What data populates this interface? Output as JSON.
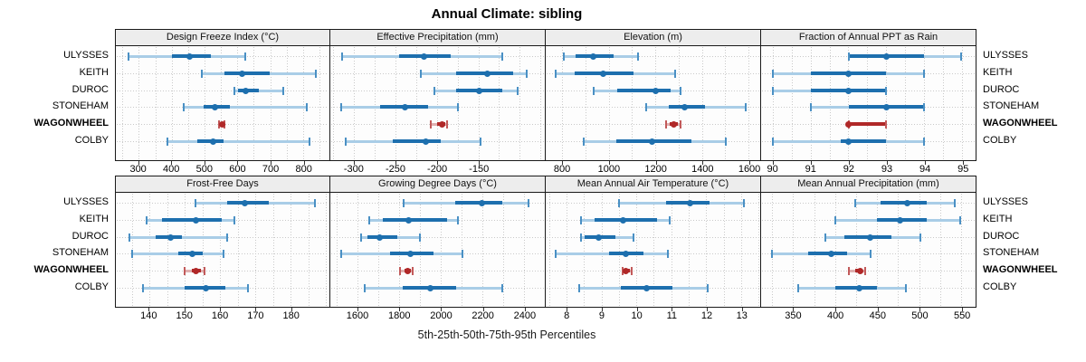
{
  "title": "Annual Climate: sibling",
  "caption": "5th-25th-50th-75th-95th Percentiles",
  "sites": [
    "ULYSSES",
    "KEITH",
    "DUROC",
    "STONEHAM",
    "WAGONWHEEL",
    "COLBY"
  ],
  "highlight_site": "WAGONWHEEL",
  "colors": {
    "blue_main": "#1d6fae",
    "blue_cap": "#4a90c4",
    "blue_band": "#a9cde7",
    "red_main": "#b02828",
    "red_cap": "#c25a5a",
    "red_band": "#dfb0b0",
    "header_bg": "#ededed",
    "panel_border": "#1a1a1a",
    "gridline": "#c9c9c9"
  },
  "chart_data": [
    {
      "type": "dot-whisker",
      "title": "Design Freeze Index (°C)",
      "row": 1,
      "xlim": [
        230,
        880
      ],
      "ticks": [
        300,
        400,
        500,
        600,
        700,
        800
      ],
      "minor_step": 50,
      "percentiles": [
        "5th",
        "25th",
        "50th",
        "75th",
        "95th"
      ],
      "series": [
        {
          "name": "ULYSSES",
          "values": [
            265,
            400,
            455,
            520,
            625
          ]
        },
        {
          "name": "KEITH",
          "values": [
            490,
            560,
            615,
            700,
            840
          ]
        },
        {
          "name": "DUROC",
          "values": [
            590,
            602,
            627,
            665,
            742
          ]
        },
        {
          "name": "STONEHAM",
          "values": [
            435,
            497,
            531,
            578,
            812
          ]
        },
        {
          "name": "WAGONWHEEL",
          "values": [
            545,
            550,
            553,
            557,
            561
          ]
        },
        {
          "name": "COLBY",
          "values": [
            385,
            477,
            527,
            558,
            822
          ]
        }
      ]
    },
    {
      "type": "dot-whisker",
      "title": "Effective Precipitation (mm)",
      "row": 1,
      "xlim": [
        -328,
        -70
      ],
      "ticks": [
        -300,
        -250,
        -200,
        -150
      ],
      "minor_step": 25,
      "percentiles": [
        "5th",
        "25th",
        "50th",
        "75th",
        "95th"
      ],
      "series": [
        {
          "name": "ULYSSES",
          "values": [
            -315,
            -246,
            -215,
            -183,
            -120
          ]
        },
        {
          "name": "KEITH",
          "values": [
            -219,
            -176,
            -139,
            -107,
            -91
          ]
        },
        {
          "name": "DUROC",
          "values": [
            -203,
            -176,
            -149,
            -120,
            -102
          ]
        },
        {
          "name": "STONEHAM",
          "values": [
            -316,
            -269,
            -238,
            -210,
            -174
          ]
        },
        {
          "name": "WAGONWHEEL",
          "values": [
            -207,
            -200,
            -194,
            -190,
            -187
          ]
        },
        {
          "name": "COLBY",
          "values": [
            -310,
            -253,
            -213,
            -195,
            -147
          ]
        }
      ]
    },
    {
      "type": "dot-whisker",
      "title": "Elevation (m)",
      "row": 1,
      "xlim": [
        730,
        1650
      ],
      "ticks": [
        800,
        1000,
        1200,
        1400,
        1600
      ],
      "minor_step": 100,
      "percentiles": [
        "5th",
        "25th",
        "50th",
        "75th",
        "95th"
      ],
      "series": [
        {
          "name": "ULYSSES",
          "values": [
            805,
            855,
            930,
            1020,
            1125
          ]
        },
        {
          "name": "KEITH",
          "values": [
            770,
            850,
            975,
            1105,
            1285
          ]
        },
        {
          "name": "DUROC",
          "values": [
            935,
            1035,
            1200,
            1265,
            1310
          ]
        },
        {
          "name": "STONEHAM",
          "values": [
            1160,
            1258,
            1327,
            1417,
            1590
          ]
        },
        {
          "name": "WAGONWHEEL",
          "values": [
            1245,
            1262,
            1280,
            1297,
            1311
          ]
        },
        {
          "name": "COLBY",
          "values": [
            890,
            1030,
            1185,
            1355,
            1505
          ]
        }
      ]
    },
    {
      "type": "dot-whisker",
      "title": "Fraction of Annual PPT as Rain",
      "row": 1,
      "xlim": [
        89.7,
        95.35
      ],
      "ticks": [
        90,
        91,
        92,
        93,
        94,
        95
      ],
      "minor_step": 0.5,
      "percentiles": [
        "5th",
        "25th",
        "50th",
        "75th",
        "95th"
      ],
      "series": [
        {
          "name": "ULYSSES",
          "values": [
            92,
            92,
            93,
            94,
            95
          ]
        },
        {
          "name": "KEITH",
          "values": [
            90,
            91,
            92,
            93,
            94
          ]
        },
        {
          "name": "DUROC",
          "values": [
            90,
            91,
            92,
            93,
            93
          ]
        },
        {
          "name": "STONEHAM",
          "values": [
            91,
            92,
            93,
            94,
            94
          ]
        },
        {
          "name": "WAGONWHEEL",
          "values": [
            92,
            92,
            92,
            93,
            93
          ]
        },
        {
          "name": "COLBY",
          "values": [
            90,
            91.8,
            92,
            93,
            94
          ]
        }
      ]
    },
    {
      "type": "dot-whisker",
      "title": "Frost-Free Days",
      "row": 2,
      "xlim": [
        130.5,
        191
      ],
      "ticks": [
        140,
        150,
        160,
        170,
        180
      ],
      "minor_step": 5,
      "percentiles": [
        "5th",
        "25th",
        "50th",
        "75th",
        "95th"
      ],
      "series": [
        {
          "name": "ULYSSES",
          "values": [
            153,
            162,
            167,
            174,
            187
          ]
        },
        {
          "name": "KEITH",
          "values": [
            139,
            143.5,
            153,
            160.5,
            164
          ]
        },
        {
          "name": "DUROC",
          "values": [
            134,
            141.5,
            146,
            149,
            162
          ]
        },
        {
          "name": "STONEHAM",
          "values": [
            135,
            148,
            152,
            155,
            161
          ]
        },
        {
          "name": "WAGONWHEEL",
          "values": [
            150,
            152,
            153,
            154.5,
            155.5
          ]
        },
        {
          "name": "COLBY",
          "values": [
            138,
            150,
            156,
            161.5,
            168
          ]
        }
      ]
    },
    {
      "type": "dot-whisker",
      "title": "Growing Degree Days (°C)",
      "row": 2,
      "xlim": [
        1470,
        2500
      ],
      "ticks": [
        1600,
        1800,
        2000,
        2200,
        2400
      ],
      "minor_step": 100,
      "percentiles": [
        "5th",
        "25th",
        "50th",
        "75th",
        "95th"
      ],
      "series": [
        {
          "name": "ULYSSES",
          "values": [
            1820,
            2070,
            2200,
            2300,
            2425
          ]
        },
        {
          "name": "KEITH",
          "values": [
            1655,
            1720,
            1845,
            2030,
            2085
          ]
        },
        {
          "name": "DUROC",
          "values": [
            1615,
            1645,
            1705,
            1790,
            1900
          ]
        },
        {
          "name": "STONEHAM",
          "values": [
            1520,
            1755,
            1855,
            1965,
            2105
          ]
        },
        {
          "name": "WAGONWHEEL",
          "values": [
            1805,
            1825,
            1840,
            1855,
            1865
          ]
        },
        {
          "name": "COLBY",
          "values": [
            1630,
            1815,
            1950,
            2075,
            2300
          ]
        }
      ]
    },
    {
      "type": "dot-whisker",
      "title": "Mean Annual Air Temperature (°C)",
      "row": 2,
      "xlim": [
        7.4,
        13.55
      ],
      "ticks": [
        8,
        9,
        10,
        11,
        12,
        13
      ],
      "minor_step": 0.5,
      "percentiles": [
        "5th",
        "25th",
        "50th",
        "75th",
        "95th"
      ],
      "series": [
        {
          "name": "ULYSSES",
          "values": [
            9.5,
            10.85,
            11.55,
            12.1,
            13.1
          ]
        },
        {
          "name": "KEITH",
          "values": [
            8.4,
            8.8,
            9.6,
            10.6,
            10.95
          ]
        },
        {
          "name": "DUROC",
          "values": [
            8.4,
            8.5,
            8.9,
            9.4,
            9.9
          ]
        },
        {
          "name": "STONEHAM",
          "values": [
            7.65,
            9.2,
            9.7,
            10.2,
            10.9
          ]
        },
        {
          "name": "WAGONWHEEL",
          "values": [
            9.6,
            9.65,
            9.7,
            9.8,
            9.85
          ]
        },
        {
          "name": "COLBY",
          "values": [
            8.35,
            9.55,
            10.3,
            11.05,
            12.05
          ]
        }
      ]
    },
    {
      "type": "dot-whisker",
      "title": "Mean Annual Precipitation (mm)",
      "row": 2,
      "xlim": [
        312,
        567
      ],
      "ticks": [
        350,
        400,
        450,
        500,
        550
      ],
      "minor_step": 25,
      "percentiles": [
        "5th",
        "25th",
        "50th",
        "75th",
        "95th"
      ],
      "series": [
        {
          "name": "ULYSSES",
          "values": [
            424,
            454,
            486,
            510,
            543
          ]
        },
        {
          "name": "KEITH",
          "values": [
            400,
            450,
            478,
            510,
            550
          ]
        },
        {
          "name": "DUROC",
          "values": [
            388,
            411,
            442,
            467,
            502
          ]
        },
        {
          "name": "STONEHAM",
          "values": [
            324,
            367,
            395,
            414,
            442
          ]
        },
        {
          "name": "WAGONWHEEL",
          "values": [
            416,
            424,
            430,
            433,
            436
          ]
        },
        {
          "name": "COLBY",
          "values": [
            355,
            400,
            429,
            450,
            485
          ]
        }
      ]
    }
  ]
}
